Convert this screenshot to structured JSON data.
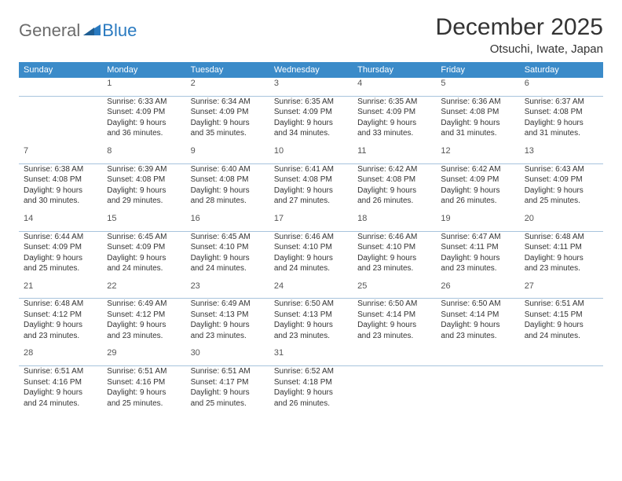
{
  "logo": {
    "part1": "General",
    "part2": "Blue"
  },
  "title": "December 2025",
  "location": "Otsuchi, Iwate, Japan",
  "colors": {
    "header_bg": "#3b8bc9",
    "header_text": "#ffffff",
    "rule": "#a8c4dd",
    "logo_gray": "#6b6b6b",
    "logo_blue": "#2a7ac0",
    "text": "#333333"
  },
  "weekdays": [
    "Sunday",
    "Monday",
    "Tuesday",
    "Wednesday",
    "Thursday",
    "Friday",
    "Saturday"
  ],
  "weeks": [
    [
      {
        "day": "",
        "sunrise": "",
        "sunset": "",
        "daylight": ""
      },
      {
        "day": "1",
        "sunrise": "Sunrise: 6:33 AM",
        "sunset": "Sunset: 4:09 PM",
        "daylight": "Daylight: 9 hours and 36 minutes."
      },
      {
        "day": "2",
        "sunrise": "Sunrise: 6:34 AM",
        "sunset": "Sunset: 4:09 PM",
        "daylight": "Daylight: 9 hours and 35 minutes."
      },
      {
        "day": "3",
        "sunrise": "Sunrise: 6:35 AM",
        "sunset": "Sunset: 4:09 PM",
        "daylight": "Daylight: 9 hours and 34 minutes."
      },
      {
        "day": "4",
        "sunrise": "Sunrise: 6:35 AM",
        "sunset": "Sunset: 4:09 PM",
        "daylight": "Daylight: 9 hours and 33 minutes."
      },
      {
        "day": "5",
        "sunrise": "Sunrise: 6:36 AM",
        "sunset": "Sunset: 4:08 PM",
        "daylight": "Daylight: 9 hours and 31 minutes."
      },
      {
        "day": "6",
        "sunrise": "Sunrise: 6:37 AM",
        "sunset": "Sunset: 4:08 PM",
        "daylight": "Daylight: 9 hours and 31 minutes."
      }
    ],
    [
      {
        "day": "7",
        "sunrise": "Sunrise: 6:38 AM",
        "sunset": "Sunset: 4:08 PM",
        "daylight": "Daylight: 9 hours and 30 minutes."
      },
      {
        "day": "8",
        "sunrise": "Sunrise: 6:39 AM",
        "sunset": "Sunset: 4:08 PM",
        "daylight": "Daylight: 9 hours and 29 minutes."
      },
      {
        "day": "9",
        "sunrise": "Sunrise: 6:40 AM",
        "sunset": "Sunset: 4:08 PM",
        "daylight": "Daylight: 9 hours and 28 minutes."
      },
      {
        "day": "10",
        "sunrise": "Sunrise: 6:41 AM",
        "sunset": "Sunset: 4:08 PM",
        "daylight": "Daylight: 9 hours and 27 minutes."
      },
      {
        "day": "11",
        "sunrise": "Sunrise: 6:42 AM",
        "sunset": "Sunset: 4:08 PM",
        "daylight": "Daylight: 9 hours and 26 minutes."
      },
      {
        "day": "12",
        "sunrise": "Sunrise: 6:42 AM",
        "sunset": "Sunset: 4:09 PM",
        "daylight": "Daylight: 9 hours and 26 minutes."
      },
      {
        "day": "13",
        "sunrise": "Sunrise: 6:43 AM",
        "sunset": "Sunset: 4:09 PM",
        "daylight": "Daylight: 9 hours and 25 minutes."
      }
    ],
    [
      {
        "day": "14",
        "sunrise": "Sunrise: 6:44 AM",
        "sunset": "Sunset: 4:09 PM",
        "daylight": "Daylight: 9 hours and 25 minutes."
      },
      {
        "day": "15",
        "sunrise": "Sunrise: 6:45 AM",
        "sunset": "Sunset: 4:09 PM",
        "daylight": "Daylight: 9 hours and 24 minutes."
      },
      {
        "day": "16",
        "sunrise": "Sunrise: 6:45 AM",
        "sunset": "Sunset: 4:10 PM",
        "daylight": "Daylight: 9 hours and 24 minutes."
      },
      {
        "day": "17",
        "sunrise": "Sunrise: 6:46 AM",
        "sunset": "Sunset: 4:10 PM",
        "daylight": "Daylight: 9 hours and 24 minutes."
      },
      {
        "day": "18",
        "sunrise": "Sunrise: 6:46 AM",
        "sunset": "Sunset: 4:10 PM",
        "daylight": "Daylight: 9 hours and 23 minutes."
      },
      {
        "day": "19",
        "sunrise": "Sunrise: 6:47 AM",
        "sunset": "Sunset: 4:11 PM",
        "daylight": "Daylight: 9 hours and 23 minutes."
      },
      {
        "day": "20",
        "sunrise": "Sunrise: 6:48 AM",
        "sunset": "Sunset: 4:11 PM",
        "daylight": "Daylight: 9 hours and 23 minutes."
      }
    ],
    [
      {
        "day": "21",
        "sunrise": "Sunrise: 6:48 AM",
        "sunset": "Sunset: 4:12 PM",
        "daylight": "Daylight: 9 hours and 23 minutes."
      },
      {
        "day": "22",
        "sunrise": "Sunrise: 6:49 AM",
        "sunset": "Sunset: 4:12 PM",
        "daylight": "Daylight: 9 hours and 23 minutes."
      },
      {
        "day": "23",
        "sunrise": "Sunrise: 6:49 AM",
        "sunset": "Sunset: 4:13 PM",
        "daylight": "Daylight: 9 hours and 23 minutes."
      },
      {
        "day": "24",
        "sunrise": "Sunrise: 6:50 AM",
        "sunset": "Sunset: 4:13 PM",
        "daylight": "Daylight: 9 hours and 23 minutes."
      },
      {
        "day": "25",
        "sunrise": "Sunrise: 6:50 AM",
        "sunset": "Sunset: 4:14 PM",
        "daylight": "Daylight: 9 hours and 23 minutes."
      },
      {
        "day": "26",
        "sunrise": "Sunrise: 6:50 AM",
        "sunset": "Sunset: 4:14 PM",
        "daylight": "Daylight: 9 hours and 23 minutes."
      },
      {
        "day": "27",
        "sunrise": "Sunrise: 6:51 AM",
        "sunset": "Sunset: 4:15 PM",
        "daylight": "Daylight: 9 hours and 24 minutes."
      }
    ],
    [
      {
        "day": "28",
        "sunrise": "Sunrise: 6:51 AM",
        "sunset": "Sunset: 4:16 PM",
        "daylight": "Daylight: 9 hours and 24 minutes."
      },
      {
        "day": "29",
        "sunrise": "Sunrise: 6:51 AM",
        "sunset": "Sunset: 4:16 PM",
        "daylight": "Daylight: 9 hours and 25 minutes."
      },
      {
        "day": "30",
        "sunrise": "Sunrise: 6:51 AM",
        "sunset": "Sunset: 4:17 PM",
        "daylight": "Daylight: 9 hours and 25 minutes."
      },
      {
        "day": "31",
        "sunrise": "Sunrise: 6:52 AM",
        "sunset": "Sunset: 4:18 PM",
        "daylight": "Daylight: 9 hours and 26 minutes."
      },
      {
        "day": "",
        "sunrise": "",
        "sunset": "",
        "daylight": ""
      },
      {
        "day": "",
        "sunrise": "",
        "sunset": "",
        "daylight": ""
      },
      {
        "day": "",
        "sunrise": "",
        "sunset": "",
        "daylight": ""
      }
    ]
  ]
}
